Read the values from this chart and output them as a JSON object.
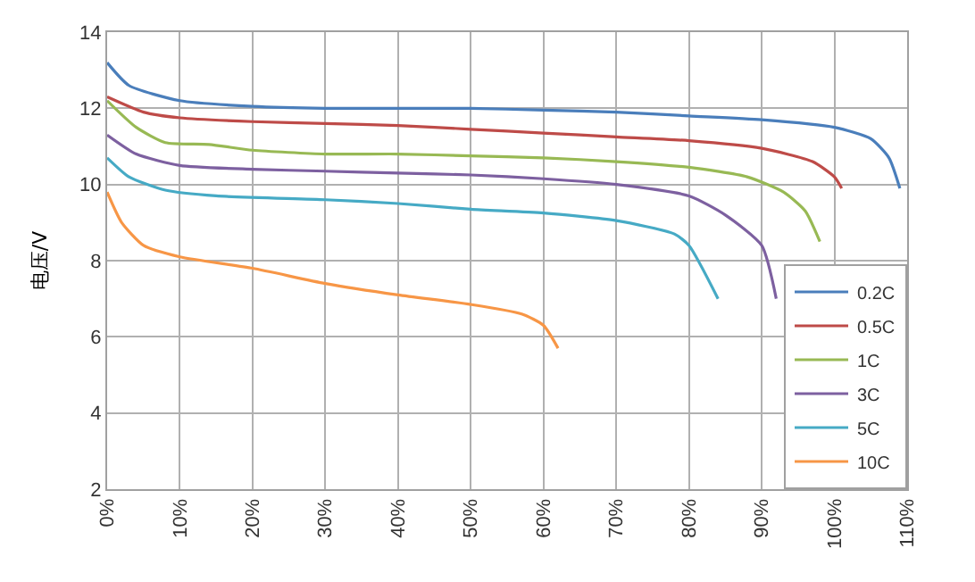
{
  "chart_data": {
    "type": "line",
    "ylabel": "电压/V",
    "xlim": [
      0,
      110
    ],
    "ylim": [
      2,
      14
    ],
    "xticks": [
      {
        "value": 0,
        "label": "0%"
      },
      {
        "value": 10,
        "label": "10%"
      },
      {
        "value": 20,
        "label": "20%"
      },
      {
        "value": 30,
        "label": "30%"
      },
      {
        "value": 40,
        "label": "40%"
      },
      {
        "value": 50,
        "label": "50%"
      },
      {
        "value": 60,
        "label": "60%"
      },
      {
        "value": 70,
        "label": "70%"
      },
      {
        "value": 80,
        "label": "80%"
      },
      {
        "value": 90,
        "label": "90%"
      },
      {
        "value": 100,
        "label": "100%"
      },
      {
        "value": 110,
        "label": "110%"
      }
    ],
    "yticks": [
      2,
      4,
      6,
      8,
      10,
      12,
      14
    ],
    "grid": true,
    "legend": "bottom right",
    "marker": "none",
    "line_style": "solid",
    "series": [
      {
        "name": "0.2C",
        "color": "#4a7ebb",
        "x": [
          0,
          3,
          10,
          20,
          30,
          50,
          60,
          70,
          80,
          90,
          100,
          105,
          107.5,
          109
        ],
        "values": [
          13.2,
          12.6,
          12.2,
          12.05,
          12.0,
          12.0,
          11.95,
          11.9,
          11.8,
          11.7,
          11.5,
          11.2,
          10.7,
          9.9
        ]
      },
      {
        "name": "0.5C",
        "color": "#be4b48",
        "x": [
          0,
          5,
          10,
          20,
          30,
          40,
          50,
          60,
          70,
          80,
          90,
          97,
          100,
          101
        ],
        "values": [
          12.3,
          11.9,
          11.75,
          11.65,
          11.6,
          11.55,
          11.45,
          11.35,
          11.25,
          11.15,
          10.95,
          10.6,
          10.2,
          9.9
        ]
      },
      {
        "name": "1C",
        "color": "#98b954",
        "x": [
          0,
          4,
          8,
          14,
          20,
          30,
          40,
          50,
          60,
          70,
          80,
          88,
          93,
          96,
          98
        ],
        "values": [
          12.2,
          11.5,
          11.1,
          11.05,
          10.9,
          10.8,
          10.8,
          10.75,
          10.7,
          10.6,
          10.45,
          10.2,
          9.8,
          9.3,
          8.5
        ]
      },
      {
        "name": "3C",
        "color": "#7d60a0",
        "x": [
          0,
          4,
          10,
          20,
          30,
          40,
          50,
          60,
          70,
          80,
          85,
          90,
          92
        ],
        "values": [
          11.3,
          10.8,
          10.5,
          10.4,
          10.35,
          10.3,
          10.25,
          10.15,
          10.0,
          9.7,
          9.2,
          8.4,
          7.0
        ]
      },
      {
        "name": "5C",
        "color": "#46aac5",
        "x": [
          0,
          3,
          8,
          15,
          30,
          40,
          50,
          60,
          70,
          78,
          80,
          84
        ],
        "values": [
          10.7,
          10.2,
          9.85,
          9.7,
          9.6,
          9.5,
          9.35,
          9.25,
          9.05,
          8.7,
          8.4,
          7.0
        ]
      },
      {
        "name": "10C",
        "color": "#f79646",
        "x": [
          0,
          2,
          5,
          10,
          20,
          30,
          40,
          50,
          57,
          60,
          62
        ],
        "values": [
          9.8,
          9.0,
          8.4,
          8.1,
          7.8,
          7.4,
          7.1,
          6.85,
          6.6,
          6.3,
          5.7
        ]
      }
    ]
  }
}
